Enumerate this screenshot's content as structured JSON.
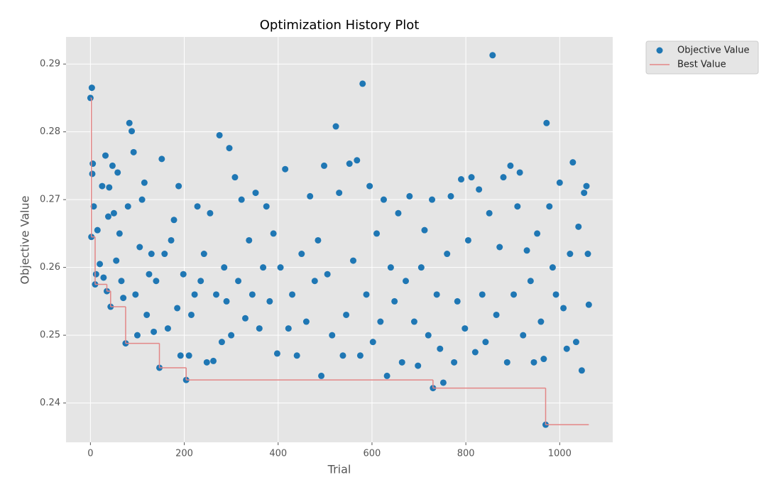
{
  "chart_data": {
    "type": "scatter",
    "title": "Optimization History Plot",
    "x_label": "Trial",
    "y_label": "Objective Value",
    "xlim": [
      -52,
      1113
    ],
    "ylim": [
      0.2342,
      0.294
    ],
    "xticks": [
      0,
      200,
      400,
      600,
      800,
      1000
    ],
    "yticks": [
      0.24,
      0.25,
      0.26,
      0.27,
      0.28,
      0.29
    ],
    "grid": true,
    "legend": "outside-upper-right",
    "series": [
      {
        "name": "Objective Value",
        "color": "#1f77b4",
        "x": [
          0,
          2,
          3,
          4,
          5,
          7,
          10,
          12,
          15,
          20,
          25,
          28,
          32,
          35,
          38,
          40,
          43,
          47,
          50,
          55,
          58,
          62,
          66,
          70,
          75,
          80,
          83,
          88,
          92,
          96,
          100,
          105,
          110,
          115,
          120,
          125,
          130,
          135,
          140,
          147,
          152,
          158,
          165,
          172,
          178,
          185,
          188,
          192,
          198,
          204,
          210,
          215,
          222,
          228,
          235,
          242,
          248,
          255,
          262,
          268,
          275,
          280,
          285,
          290,
          296,
          300,
          308,
          315,
          322,
          330,
          338,
          345,
          352,
          360,
          368,
          375,
          382,
          390,
          398,
          405,
          415,
          422,
          430,
          440,
          450,
          460,
          468,
          478,
          485,
          492,
          498,
          505,
          515,
          523,
          530,
          538,
          545,
          552,
          560,
          568,
          575,
          580,
          588,
          595,
          602,
          610,
          618,
          625,
          632,
          640,
          648,
          656,
          664,
          672,
          680,
          690,
          698,
          705,
          712,
          720,
          728,
          730,
          738,
          745,
          752,
          760,
          768,
          775,
          782,
          790,
          798,
          805,
          812,
          820,
          828,
          835,
          842,
          850,
          857,
          865,
          872,
          880,
          888,
          895,
          902,
          910,
          915,
          922,
          930,
          938,
          945,
          952,
          960,
          966,
          970,
          972,
          978,
          985,
          992,
          1000,
          1008,
          1015,
          1022,
          1028,
          1035,
          1040,
          1047,
          1052,
          1057,
          1060,
          1062
        ],
        "values": [
          0.285,
          0.2645,
          0.2865,
          0.2738,
          0.2753,
          0.269,
          0.2575,
          0.259,
          0.2655,
          0.2605,
          0.272,
          0.2585,
          0.2765,
          0.2565,
          0.2675,
          0.2718,
          0.2542,
          0.275,
          0.268,
          0.261,
          0.274,
          0.265,
          0.258,
          0.2555,
          0.2488,
          0.269,
          0.2813,
          0.2801,
          0.277,
          0.256,
          0.25,
          0.263,
          0.27,
          0.2725,
          0.253,
          0.259,
          0.262,
          0.2505,
          0.258,
          0.2452,
          0.276,
          0.262,
          0.251,
          0.264,
          0.267,
          0.254,
          0.272,
          0.247,
          0.259,
          0.2434,
          0.247,
          0.253,
          0.256,
          0.269,
          0.258,
          0.262,
          0.246,
          0.268,
          0.2462,
          0.256,
          0.2795,
          0.249,
          0.26,
          0.255,
          0.2776,
          0.25,
          0.2733,
          0.258,
          0.27,
          0.2525,
          0.264,
          0.256,
          0.271,
          0.251,
          0.26,
          0.269,
          0.255,
          0.265,
          0.2473,
          0.26,
          0.2745,
          0.251,
          0.256,
          0.247,
          0.262,
          0.252,
          0.2705,
          0.258,
          0.264,
          0.244,
          0.275,
          0.259,
          0.25,
          0.2808,
          0.271,
          0.247,
          0.253,
          0.2753,
          0.261,
          0.2758,
          0.247,
          0.2871,
          0.256,
          0.272,
          0.249,
          0.265,
          0.252,
          0.27,
          0.244,
          0.26,
          0.255,
          0.268,
          0.246,
          0.258,
          0.2705,
          0.252,
          0.2455,
          0.26,
          0.2655,
          0.25,
          0.27,
          0.2422,
          0.256,
          0.248,
          0.243,
          0.262,
          0.2705,
          0.246,
          0.255,
          0.273,
          0.251,
          0.264,
          0.2733,
          0.2475,
          0.2715,
          0.256,
          0.249,
          0.268,
          0.2913,
          0.253,
          0.263,
          0.2733,
          0.246,
          0.275,
          0.256,
          0.269,
          0.274,
          0.25,
          0.2625,
          0.258,
          0.246,
          0.265,
          0.252,
          0.2465,
          0.2368,
          0.2813,
          0.269,
          0.26,
          0.256,
          0.2725,
          0.254,
          0.248,
          0.262,
          0.2755,
          0.249,
          0.266,
          0.2448,
          0.271,
          0.272,
          0.262,
          0.2545
        ]
      },
      {
        "name": "Best Value",
        "color": "#e38686",
        "x": [
          0,
          2,
          10,
          35,
          43,
          75,
          147,
          204,
          730,
          970,
          1062
        ],
        "values": [
          0.285,
          0.2645,
          0.2575,
          0.2565,
          0.2542,
          0.2488,
          0.2452,
          0.2434,
          0.2422,
          0.2368,
          0.2368
        ]
      }
    ]
  }
}
